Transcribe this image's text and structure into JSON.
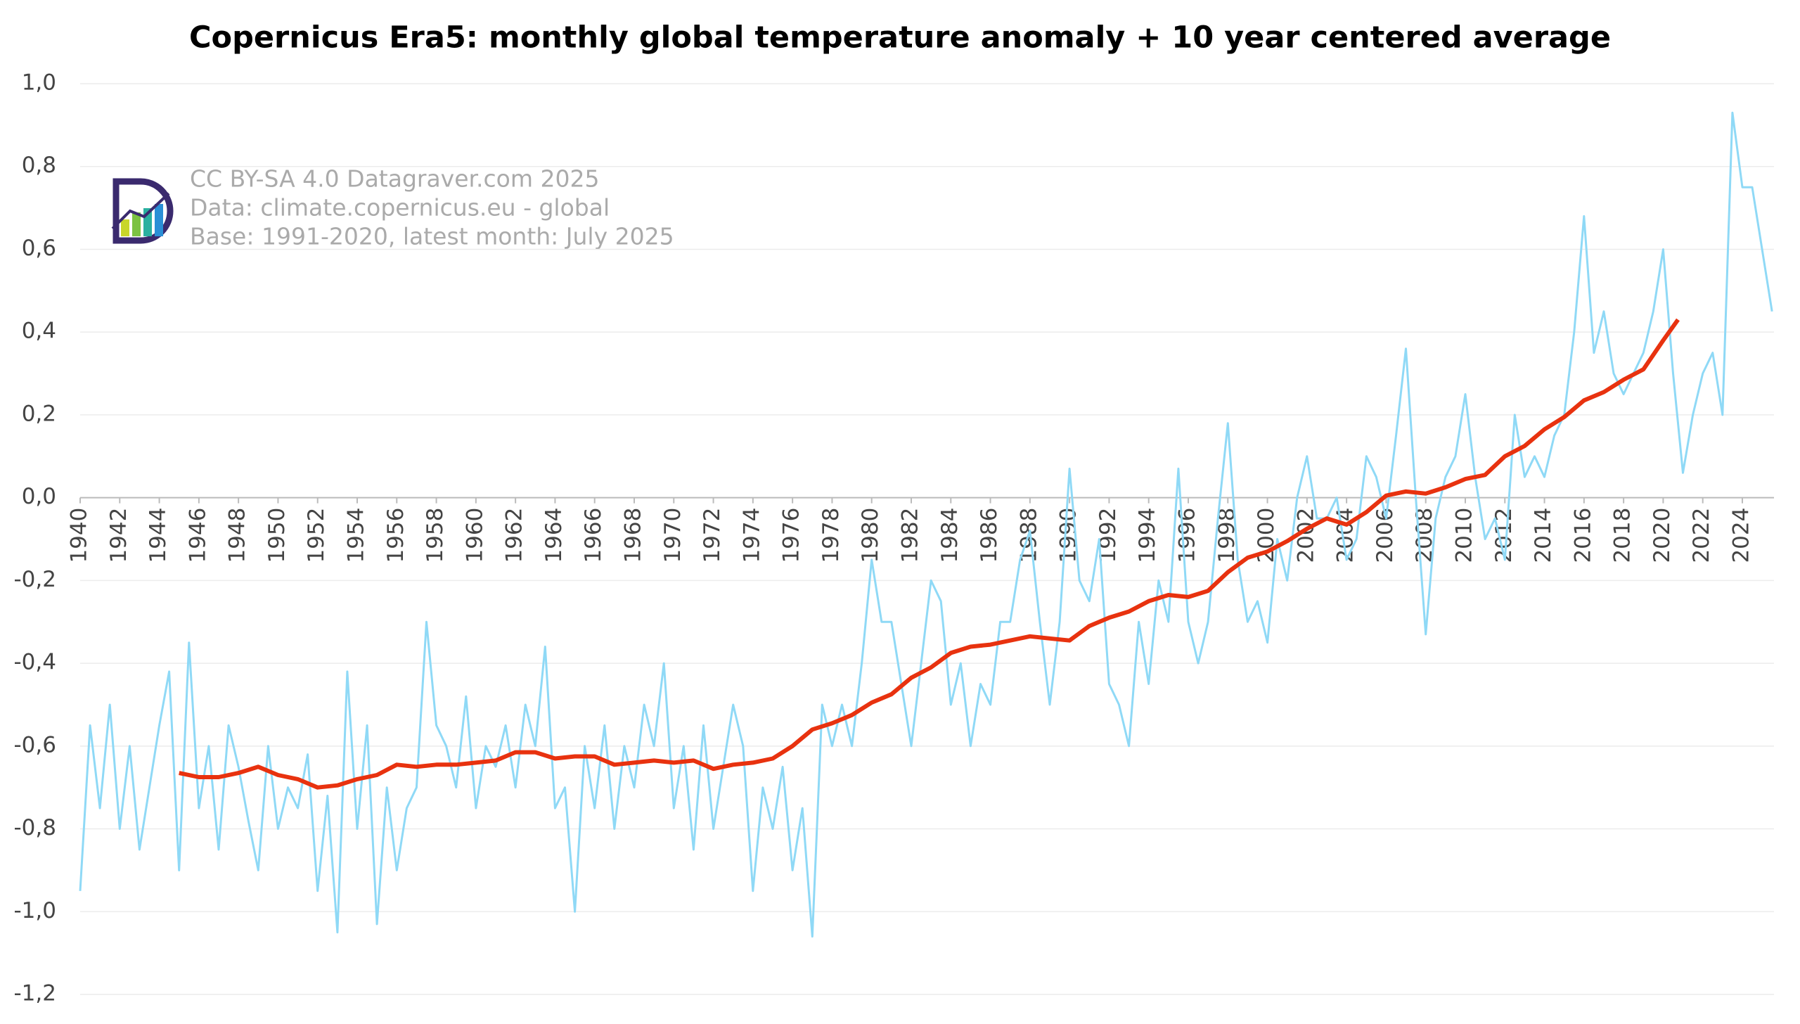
{
  "chart_data": {
    "type": "line",
    "title": "Copernicus Era5: monthly global temperature anomaly + 10 year centered average",
    "annotations": [
      "CC BY-SA 4.0 Datagraver.com 2025",
      "Data: climate.copernicus.eu - global",
      "Base: 1991-2020, latest month: July 2025"
    ],
    "xlim": [
      1940,
      2025.6
    ],
    "xticks": [
      1940,
      1942,
      1944,
      1946,
      1948,
      1950,
      1952,
      1954,
      1956,
      1958,
      1960,
      1962,
      1964,
      1966,
      1968,
      1970,
      1972,
      1974,
      1976,
      1978,
      1980,
      1982,
      1984,
      1986,
      1988,
      1990,
      1992,
      1994,
      1996,
      1998,
      2000,
      2002,
      2004,
      2006,
      2008,
      2010,
      2012,
      2014,
      2016,
      2018,
      2020,
      2022,
      2024
    ],
    "ylim": [
      -1.2,
      1.0
    ],
    "yticks": [
      {
        "value": -1.2,
        "label": "-1,2"
      },
      {
        "value": -1.0,
        "label": "-1,0"
      },
      {
        "value": -0.8,
        "label": "-0,8"
      },
      {
        "value": -0.6,
        "label": "-0,6"
      },
      {
        "value": -0.4,
        "label": "-0,4"
      },
      {
        "value": -0.2,
        "label": "-0,2"
      },
      {
        "value": 0,
        "label": "0,0"
      },
      {
        "value": 0.2,
        "label": "0,2"
      },
      {
        "value": 0.4,
        "label": "0,4"
      },
      {
        "value": 0.6,
        "label": "0,6"
      },
      {
        "value": 0.8,
        "label": "0,8"
      },
      {
        "value": 1.0,
        "label": "1,0"
      }
    ],
    "grid": true,
    "series": [
      {
        "color": "#8fd9f6",
        "x": [
          1940,
          1940.5,
          1941,
          1941.5,
          1942,
          1942.5,
          1943,
          1943.5,
          1944,
          1944.5,
          1945,
          1945.5,
          1946,
          1946.5,
          1947,
          1947.5,
          1948,
          1948.5,
          1949,
          1949.5,
          1950,
          1950.5,
          1951,
          1951.5,
          1952,
          1952.5,
          1953,
          1953.5,
          1954,
          1954.5,
          1955,
          1955.5,
          1956,
          1956.5,
          1957,
          1957.5,
          1958,
          1958.5,
          1959,
          1959.5,
          1960,
          1960.5,
          1961,
          1961.5,
          1962,
          1962.5,
          1963,
          1963.5,
          1964,
          1964.5,
          1965,
          1965.5,
          1966,
          1966.5,
          1967,
          1967.5,
          1968,
          1968.5,
          1969,
          1969.5,
          1970,
          1970.5,
          1971,
          1971.5,
          1972,
          1972.5,
          1973,
          1973.5,
          1974,
          1974.5,
          1975,
          1975.5,
          1976,
          1976.5,
          1977,
          1977.5,
          1978,
          1978.5,
          1979,
          1979.5,
          1980,
          1980.5,
          1981,
          1981.5,
          1982,
          1982.5,
          1983,
          1983.5,
          1984,
          1984.5,
          1985,
          1985.5,
          1986,
          1986.5,
          1987,
          1987.5,
          1988,
          1988.5,
          1989,
          1989.5,
          1990,
          1990.5,
          1991,
          1991.5,
          1992,
          1992.5,
          1993,
          1993.5,
          1994,
          1994.5,
          1995,
          1995.5,
          1996,
          1996.5,
          1997,
          1997.5,
          1998,
          1998.5,
          1999,
          1999.5,
          2000,
          2000.5,
          2001,
          2001.5,
          2002,
          2002.5,
          2003,
          2003.5,
          2004,
          2004.5,
          2005,
          2005.5,
          2006,
          2006.5,
          2007,
          2007.5,
          2008,
          2008.5,
          2009,
          2009.5,
          2010,
          2010.5,
          2011,
          2011.5,
          2012,
          2012.5,
          2013,
          2013.5,
          2014,
          2014.5,
          2015,
          2015.5,
          2016,
          2016.5,
          2017,
          2017.5,
          2018,
          2018.5,
          2019,
          2019.5,
          2020,
          2020.5,
          2021,
          2021.5,
          2022,
          2022.5,
          2023,
          2023.5,
          2024,
          2024.5,
          2025,
          2025.5
        ],
        "values": [
          -0.95,
          -0.55,
          -0.75,
          -0.5,
          -0.8,
          -0.6,
          -0.85,
          -0.7,
          -0.55,
          -0.42,
          -0.9,
          -0.35,
          -0.75,
          -0.6,
          -0.85,
          -0.55,
          -0.65,
          -0.78,
          -0.9,
          -0.6,
          -0.8,
          -0.7,
          -0.75,
          -0.62,
          -0.95,
          -0.72,
          -1.05,
          -0.42,
          -0.8,
          -0.55,
          -1.03,
          -0.7,
          -0.9,
          -0.75,
          -0.7,
          -0.3,
          -0.55,
          -0.6,
          -0.7,
          -0.48,
          -0.75,
          -0.6,
          -0.65,
          -0.55,
          -0.7,
          -0.5,
          -0.6,
          -0.36,
          -0.75,
          -0.7,
          -1.0,
          -0.6,
          -0.75,
          -0.55,
          -0.8,
          -0.6,
          -0.7,
          -0.5,
          -0.6,
          -0.4,
          -0.75,
          -0.6,
          -0.85,
          -0.55,
          -0.8,
          -0.65,
          -0.5,
          -0.6,
          -0.95,
          -0.7,
          -0.8,
          -0.65,
          -0.9,
          -0.75,
          -1.06,
          -0.5,
          -0.6,
          -0.5,
          -0.6,
          -0.4,
          -0.15,
          -0.3,
          -0.3,
          -0.45,
          -0.6,
          -0.4,
          -0.2,
          -0.25,
          -0.5,
          -0.4,
          -0.6,
          -0.45,
          -0.5,
          -0.3,
          -0.3,
          -0.15,
          -0.08,
          -0.3,
          -0.5,
          -0.3,
          0.07,
          -0.2,
          -0.25,
          -0.1,
          -0.45,
          -0.5,
          -0.6,
          -0.3,
          -0.45,
          -0.2,
          -0.3,
          0.07,
          -0.3,
          -0.4,
          -0.3,
          -0.05,
          0.18,
          -0.15,
          -0.3,
          -0.25,
          -0.35,
          -0.1,
          -0.2,
          0.0,
          0.1,
          -0.05,
          -0.05,
          0.0,
          -0.15,
          -0.1,
          0.1,
          0.05,
          -0.05,
          0.15,
          0.36,
          0.0,
          -0.33,
          -0.05,
          0.05,
          0.1,
          0.25,
          0.05,
          -0.1,
          -0.05,
          -0.15,
          0.2,
          0.05,
          0.1,
          0.05,
          0.15,
          0.2,
          0.4,
          0.68,
          0.35,
          0.45,
          0.3,
          0.25,
          0.3,
          0.35,
          0.45,
          0.6,
          0.3,
          0.06,
          0.2,
          0.3,
          0.35,
          0.2,
          0.93,
          0.75,
          0.75,
          0.6,
          0.45
        ]
      },
      {
        "color": "#e8320f",
        "x": [
          1945,
          1946,
          1947,
          1948,
          1949,
          1950,
          1951,
          1952,
          1953,
          1954,
          1955,
          1956,
          1957,
          1958,
          1959,
          1960,
          1961,
          1962,
          1963,
          1964,
          1965,
          1966,
          1967,
          1968,
          1969,
          1970,
          1971,
          1972,
          1973,
          1974,
          1975,
          1976,
          1977,
          1978,
          1979,
          1980,
          1981,
          1982,
          1983,
          1984,
          1985,
          1986,
          1987,
          1988,
          1989,
          1990,
          1991,
          1992,
          1993,
          1994,
          1995,
          1996,
          1997,
          1998,
          1999,
          2000,
          2001,
          2002,
          2003,
          2004,
          2005,
          2006,
          2007,
          2008,
          2009,
          2010,
          2011,
          2012,
          2013,
          2014,
          2015,
          2016,
          2017,
          2018,
          2019,
          2020,
          2020.75
        ],
        "values": [
          -0.665,
          -0.675,
          -0.675,
          -0.665,
          -0.65,
          -0.67,
          -0.68,
          -0.7,
          -0.695,
          -0.68,
          -0.67,
          -0.645,
          -0.65,
          -0.645,
          -0.645,
          -0.64,
          -0.635,
          -0.615,
          -0.615,
          -0.63,
          -0.625,
          -0.625,
          -0.645,
          -0.64,
          -0.635,
          -0.64,
          -0.635,
          -0.655,
          -0.645,
          -0.64,
          -0.63,
          -0.6,
          -0.56,
          -0.545,
          -0.525,
          -0.495,
          -0.475,
          -0.435,
          -0.41,
          -0.375,
          -0.36,
          -0.355,
          -0.345,
          -0.335,
          -0.34,
          -0.345,
          -0.31,
          -0.29,
          -0.275,
          -0.25,
          -0.235,
          -0.24,
          -0.225,
          -0.18,
          -0.145,
          -0.13,
          -0.105,
          -0.075,
          -0.05,
          -0.065,
          -0.035,
          0.005,
          0.015,
          0.01,
          0.025,
          0.045,
          0.055,
          0.1,
          0.125,
          0.165,
          0.195,
          0.235,
          0.255,
          0.285,
          0.31,
          0.38,
          0.43
        ]
      }
    ]
  }
}
